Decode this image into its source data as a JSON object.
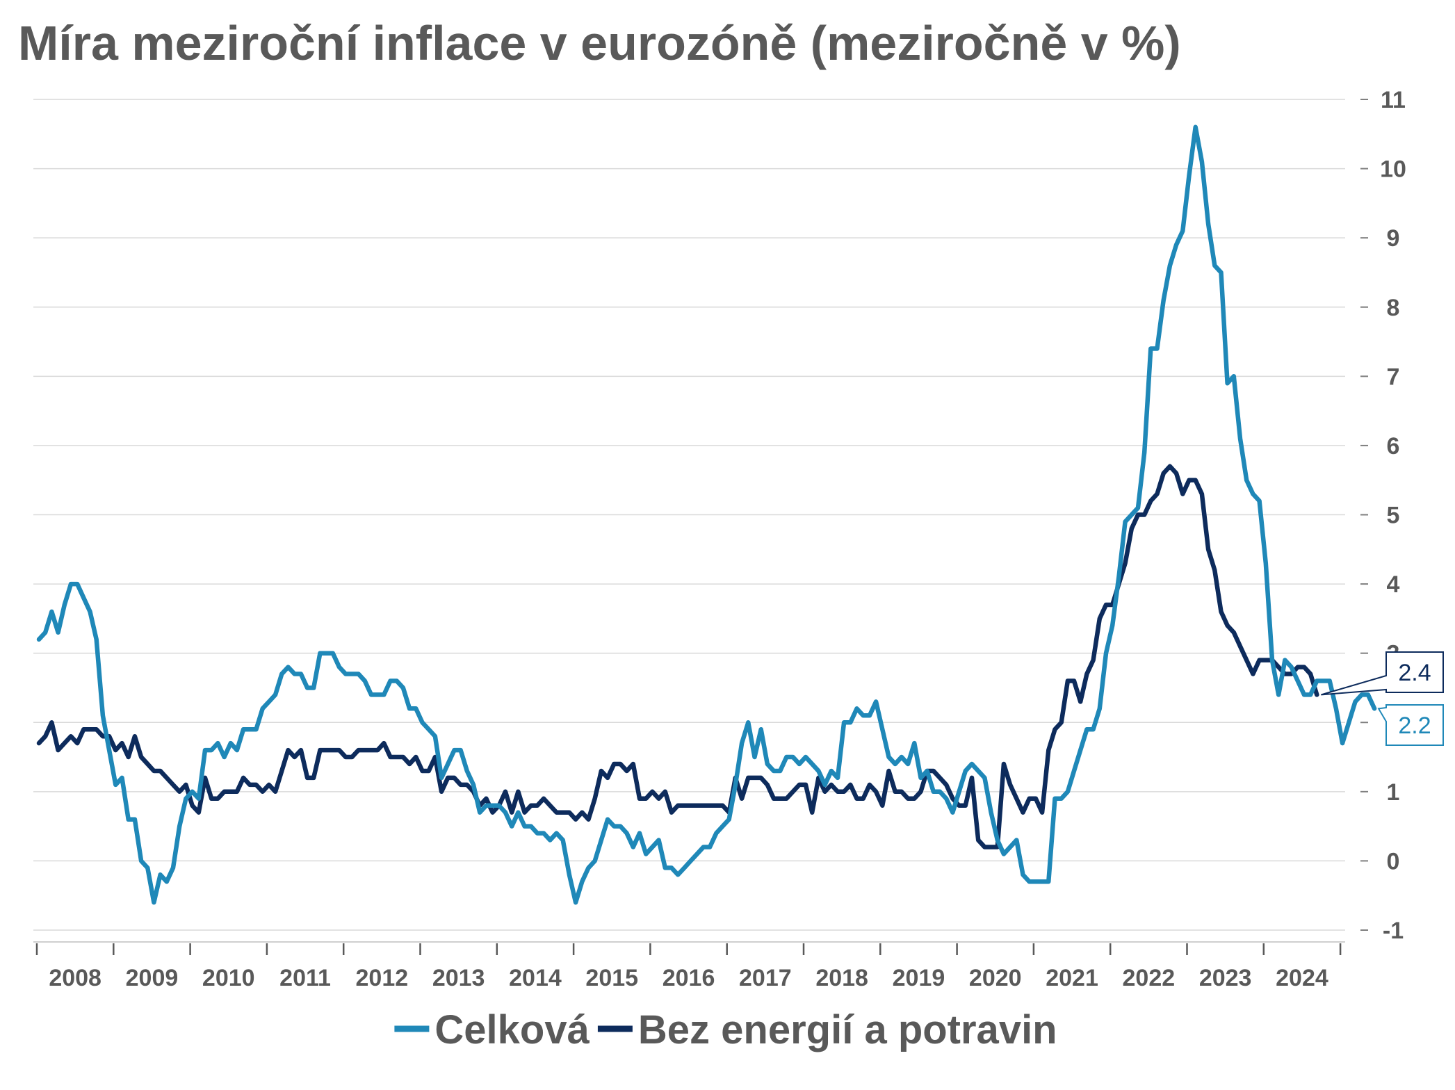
{
  "chart_data": {
    "type": "line",
    "title": "Míra meziroční inflace v eurozóně (meziročně v %)",
    "xlabel": "",
    "ylabel": "",
    "x_start": "2008-01",
    "x_end": "2024-09",
    "x_tick_labels": [
      "2008",
      "2009",
      "2010",
      "2011",
      "2012",
      "2013",
      "2014",
      "2015",
      "2016",
      "2017",
      "2018",
      "2019",
      "2020",
      "2021",
      "2022",
      "2023",
      "2024"
    ],
    "ylim": [
      -1,
      11
    ],
    "y_ticks": [
      -1,
      0,
      1,
      2,
      3,
      4,
      5,
      6,
      7,
      8,
      9,
      10,
      11
    ],
    "y_axis_side": "right",
    "grid": true,
    "legend_position": "bottom",
    "series": [
      {
        "name": "Celková",
        "color": "#1f88b8",
        "last_label": "2.2",
        "values": [
          3.2,
          3.3,
          3.6,
          3.3,
          3.7,
          4.0,
          4.0,
          3.8,
          3.6,
          3.2,
          2.1,
          1.6,
          1.1,
          1.2,
          0.6,
          0.6,
          0.0,
          -0.1,
          -0.6,
          -0.2,
          -0.3,
          -0.1,
          0.5,
          0.9,
          1.0,
          0.9,
          1.6,
          1.6,
          1.7,
          1.5,
          1.7,
          1.6,
          1.9,
          1.9,
          1.9,
          2.2,
          2.3,
          2.4,
          2.7,
          2.8,
          2.7,
          2.7,
          2.5,
          2.5,
          3.0,
          3.0,
          3.0,
          2.8,
          2.7,
          2.7,
          2.7,
          2.6,
          2.4,
          2.4,
          2.4,
          2.6,
          2.6,
          2.5,
          2.2,
          2.2,
          2.0,
          1.9,
          1.8,
          1.2,
          1.4,
          1.6,
          1.6,
          1.3,
          1.1,
          0.7,
          0.8,
          0.8,
          0.8,
          0.7,
          0.5,
          0.7,
          0.5,
          0.5,
          0.4,
          0.4,
          0.3,
          0.4,
          0.3,
          -0.2,
          -0.6,
          -0.3,
          -0.1,
          0.0,
          0.3,
          0.6,
          0.5,
          0.5,
          0.4,
          0.2,
          0.4,
          0.1,
          0.2,
          0.3,
          -0.1,
          -0.1,
          -0.2,
          -0.1,
          0.0,
          0.1,
          0.2,
          0.2,
          0.4,
          0.5,
          0.6,
          1.1,
          1.7,
          2.0,
          1.5,
          1.9,
          1.4,
          1.3,
          1.3,
          1.5,
          1.5,
          1.4,
          1.5,
          1.4,
          1.3,
          1.1,
          1.3,
          1.2,
          2.0,
          2.0,
          2.2,
          2.1,
          2.1,
          2.3,
          1.9,
          1.5,
          1.4,
          1.5,
          1.4,
          1.7,
          1.2,
          1.3,
          1.0,
          1.0,
          0.9,
          0.7,
          1.0,
          1.3,
          1.4,
          1.3,
          1.2,
          0.7,
          0.3,
          0.1,
          0.2,
          0.3,
          -0.2,
          -0.3,
          -0.3,
          -0.3,
          -0.3,
          0.9,
          0.9,
          1.0,
          1.3,
          1.6,
          1.9,
          1.9,
          2.2,
          3.0,
          3.4,
          4.1,
          4.9,
          5.0,
          5.1,
          5.9,
          7.4,
          7.4,
          8.1,
          8.6,
          8.9,
          9.1,
          9.9,
          10.6,
          10.1,
          9.2,
          8.6,
          8.5,
          6.9,
          7.0,
          6.1,
          5.5,
          5.3,
          5.2,
          4.3,
          2.9,
          2.4,
          2.9,
          2.8,
          2.6,
          2.4,
          2.4,
          2.6,
          2.6,
          2.6,
          2.2,
          1.7,
          2.0,
          2.3,
          2.4,
          2.4,
          2.2
        ]
      },
      {
        "name": "Bez energií a potravin",
        "color": "#0d2b5c",
        "last_label": "2.4",
        "values": [
          1.7,
          1.8,
          2.0,
          1.6,
          1.7,
          1.8,
          1.7,
          1.9,
          1.9,
          1.9,
          1.8,
          1.8,
          1.6,
          1.7,
          1.5,
          1.8,
          1.5,
          1.4,
          1.3,
          1.3,
          1.2,
          1.1,
          1.0,
          1.1,
          0.8,
          0.7,
          1.2,
          0.9,
          0.9,
          1.0,
          1.0,
          1.0,
          1.2,
          1.1,
          1.1,
          1.0,
          1.1,
          1.0,
          1.3,
          1.6,
          1.5,
          1.6,
          1.2,
          1.2,
          1.6,
          1.6,
          1.6,
          1.6,
          1.5,
          1.5,
          1.6,
          1.6,
          1.6,
          1.6,
          1.7,
          1.5,
          1.5,
          1.5,
          1.4,
          1.5,
          1.3,
          1.3,
          1.5,
          1.0,
          1.2,
          1.2,
          1.1,
          1.1,
          1.0,
          0.8,
          0.9,
          0.7,
          0.8,
          1.0,
          0.7,
          1.0,
          0.7,
          0.8,
          0.8,
          0.9,
          0.8,
          0.7,
          0.7,
          0.7,
          0.6,
          0.7,
          0.6,
          0.9,
          1.3,
          1.2,
          1.4,
          1.4,
          1.3,
          1.4,
          0.9,
          0.9,
          1.0,
          0.9,
          1.0,
          0.7,
          0.8,
          0.8,
          0.8,
          0.8,
          0.8,
          0.8,
          0.8,
          0.8,
          0.7,
          1.2,
          0.9,
          1.2,
          1.2,
          1.2,
          1.1,
          0.9,
          0.9,
          0.9,
          1.0,
          1.1,
          1.1,
          0.7,
          1.2,
          1.0,
          1.1,
          1.0,
          1.0,
          1.1,
          0.9,
          0.9,
          1.1,
          1.0,
          0.8,
          1.3,
          1.0,
          1.0,
          0.9,
          0.9,
          1.0,
          1.3,
          1.3,
          1.2,
          1.1,
          0.9,
          0.8,
          0.8,
          1.2,
          0.3,
          0.2,
          0.2,
          0.2,
          1.4,
          1.1,
          0.9,
          0.7,
          0.9,
          0.9,
          0.7,
          1.6,
          1.9,
          2.0,
          2.6,
          2.6,
          2.3,
          2.7,
          2.9,
          3.5,
          3.7,
          3.7,
          4.0,
          4.3,
          4.8,
          5.0,
          5.0,
          5.2,
          5.3,
          5.6,
          5.7,
          5.6,
          5.3,
          5.5,
          5.5,
          5.3,
          4.5,
          4.2,
          3.6,
          3.4,
          3.3,
          3.1,
          2.9,
          2.7,
          2.9,
          2.9,
          2.9,
          2.8,
          2.7,
          2.7,
          2.8,
          2.8,
          2.7,
          2.4
        ]
      }
    ]
  }
}
